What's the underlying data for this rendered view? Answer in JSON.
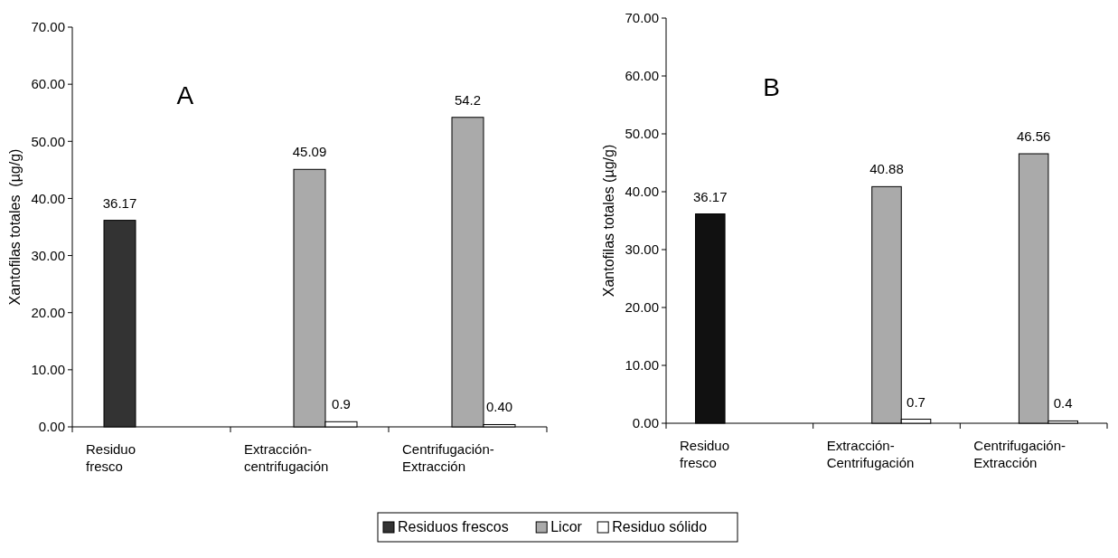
{
  "chart_data": [
    {
      "type": "bar",
      "title": "A",
      "ylabel": "Xantofilas totales  (µg/g)",
      "categories": [
        "Residuo fresco",
        "Extracción-centrifugación",
        "Centrifugación-Extracción"
      ],
      "series": [
        {
          "name": "Residuos frescos",
          "color": "#333333",
          "values": [
            36.17,
            null,
            null
          ],
          "value_labels": [
            "36.17",
            null,
            null
          ]
        },
        {
          "name": "Licor",
          "color": "#aaaaaa",
          "values": [
            null,
            45.09,
            54.2
          ],
          "value_labels": [
            null,
            "45.09",
            "54.2"
          ]
        },
        {
          "name": "Residuo sólido",
          "color": "#ffffff",
          "values": [
            null,
            0.9,
            0.4
          ],
          "value_labels": [
            null,
            "0.9",
            "0.40"
          ]
        }
      ],
      "ylim": [
        0,
        70
      ],
      "yticks": [
        {
          "value": 0,
          "label": "0.00"
        },
        {
          "value": 10,
          "label": "10.00"
        },
        {
          "value": 20,
          "label": "20.00"
        },
        {
          "value": 30,
          "label": "30.00"
        },
        {
          "value": 40,
          "label": "40.00"
        },
        {
          "value": 50,
          "label": "50.00"
        },
        {
          "value": 60,
          "label": "60.00"
        },
        {
          "value": 70,
          "label": "70.00"
        }
      ],
      "grid": false,
      "legend": "bottom"
    },
    {
      "type": "bar",
      "title": "B",
      "ylabel": "Xantofilas totales (µg/g)",
      "categories": [
        "Residuo fresco",
        "Extracción-Centrifugación",
        "Centrifugación-Extracción"
      ],
      "series": [
        {
          "color": "#111111",
          "values": [
            36.17,
            null,
            null
          ],
          "value_labels": [
            "36.17",
            null,
            null
          ]
        },
        {
          "color": "#aaaaaa",
          "values": [
            null,
            40.88,
            46.56
          ],
          "value_labels": [
            null,
            "40.88",
            "46.56"
          ]
        },
        {
          "color": "#ffffff",
          "values": [
            null,
            0.7,
            0.4
          ],
          "value_labels": [
            null,
            "0.7",
            "0.4"
          ]
        }
      ],
      "ylim": [
        0,
        70
      ],
      "yticks": [
        {
          "value": 0,
          "label": "0.00"
        },
        {
          "value": 10,
          "label": "10.00"
        },
        {
          "value": 20,
          "label": "20.00"
        },
        {
          "value": 30,
          "label": "30.00"
        },
        {
          "value": 40,
          "label": "40.00"
        },
        {
          "value": 50,
          "label": "50.00"
        },
        {
          "value": 60,
          "label": "60.00"
        },
        {
          "value": 70,
          "label": "70.00"
        }
      ],
      "grid": false
    }
  ]
}
